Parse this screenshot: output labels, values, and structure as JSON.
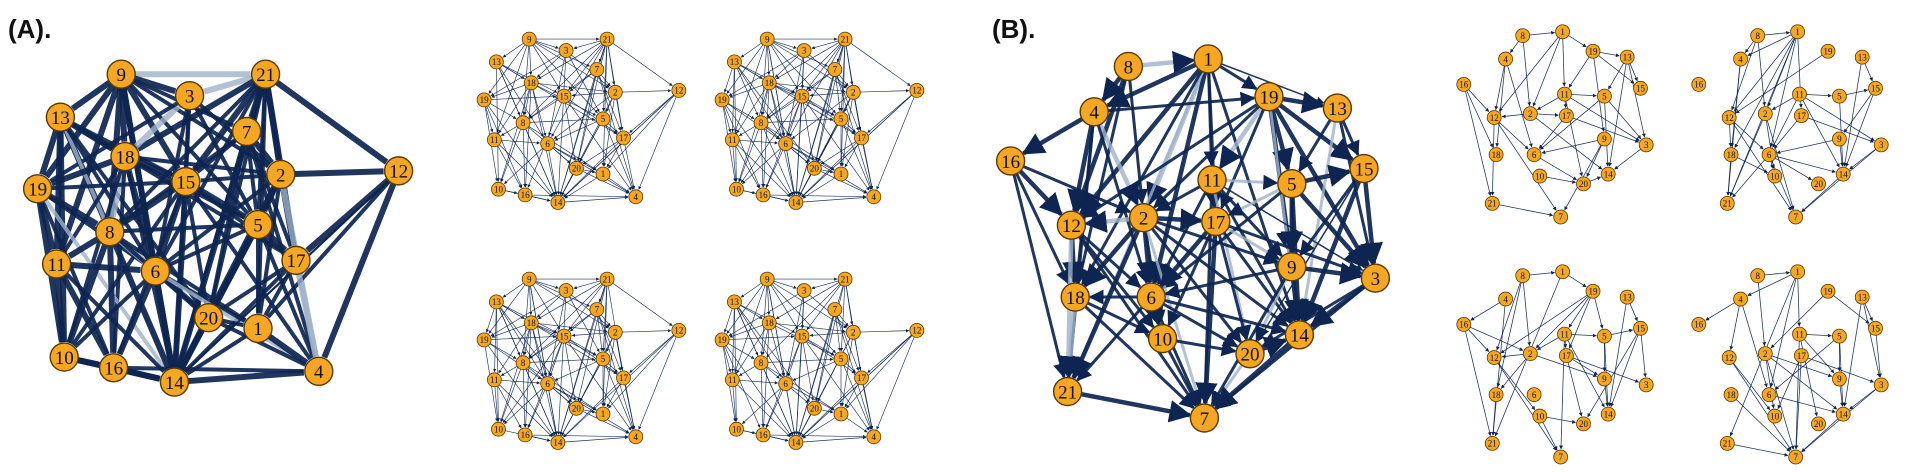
{
  "colors": {
    "node_fill": "#f5a623",
    "node_stroke": "#5a3a00",
    "edge_strong": "#0d2550",
    "edge_light": "#9fb2c9",
    "background": "#ffffff"
  },
  "panels": [
    {
      "label": "(A).",
      "large_graph": {
        "nodes": [
          "9",
          "21",
          "3",
          "13",
          "7",
          "18",
          "2",
          "12",
          "19",
          "15",
          "8",
          "5",
          "17",
          "11",
          "6",
          "20",
          "1",
          "10",
          "16",
          "14",
          "4"
        ],
        "edges": [
          [
            "9",
            "21",
            3
          ],
          [
            "9",
            "3",
            3
          ],
          [
            "9",
            "13",
            3
          ],
          [
            "9",
            "18",
            3
          ],
          [
            "9",
            "15",
            3
          ],
          [
            "9",
            "8",
            3
          ],
          [
            "9",
            "19",
            3
          ],
          [
            "9",
            "11",
            3
          ],
          [
            "9",
            "6",
            3
          ],
          [
            "9",
            "14",
            3
          ],
          [
            "9",
            "2",
            2
          ],
          [
            "9",
            "7",
            2
          ],
          [
            "9",
            "5",
            2
          ],
          [
            "21",
            "3",
            3
          ],
          [
            "21",
            "7",
            3
          ],
          [
            "21",
            "2",
            3
          ],
          [
            "21",
            "12",
            3
          ],
          [
            "21",
            "17",
            3
          ],
          [
            "21",
            "14",
            3
          ],
          [
            "21",
            "15",
            3
          ],
          [
            "21",
            "18",
            3
          ],
          [
            "21",
            "5",
            2
          ],
          [
            "21",
            "20",
            2
          ],
          [
            "21",
            "6",
            2
          ],
          [
            "21",
            "1",
            2
          ],
          [
            "21",
            "8",
            2
          ],
          [
            "3",
            "18",
            3
          ],
          [
            "3",
            "15",
            2
          ],
          [
            "3",
            "2",
            2
          ],
          [
            "3",
            "5",
            2
          ],
          [
            "3",
            "14",
            2
          ],
          [
            "3",
            "19",
            2
          ],
          [
            "3",
            "6",
            2
          ],
          [
            "13",
            "18",
            3
          ],
          [
            "13",
            "19",
            3
          ],
          [
            "13",
            "8",
            3
          ],
          [
            "13",
            "11",
            3
          ],
          [
            "13",
            "10",
            3
          ],
          [
            "13",
            "15",
            2
          ],
          [
            "13",
            "14",
            2
          ],
          [
            "13",
            "6",
            2
          ],
          [
            "13",
            "20",
            2
          ],
          [
            "13",
            "17",
            2
          ],
          [
            "7",
            "2",
            3
          ],
          [
            "7",
            "15",
            2
          ],
          [
            "7",
            "5",
            2
          ],
          [
            "7",
            "14",
            2
          ],
          [
            "7",
            "8",
            2
          ],
          [
            "7",
            "17",
            2
          ],
          [
            "7",
            "20",
            2
          ],
          [
            "7",
            "4",
            2
          ],
          [
            "18",
            "19",
            3
          ],
          [
            "18",
            "8",
            3
          ],
          [
            "18",
            "15",
            3
          ],
          [
            "18",
            "6",
            3
          ],
          [
            "18",
            "11",
            2
          ],
          [
            "18",
            "10",
            2
          ],
          [
            "18",
            "16",
            2
          ],
          [
            "18",
            "14",
            2
          ],
          [
            "18",
            "2",
            2
          ],
          [
            "18",
            "5",
            2
          ],
          [
            "2",
            "12",
            3
          ],
          [
            "2",
            "5",
            3
          ],
          [
            "2",
            "17",
            3
          ],
          [
            "2",
            "14",
            3
          ],
          [
            "2",
            "4",
            3
          ],
          [
            "2",
            "20",
            2
          ],
          [
            "2",
            "1",
            2
          ],
          [
            "2",
            "6",
            2
          ],
          [
            "2",
            "15",
            2
          ],
          [
            "12",
            "17",
            3
          ],
          [
            "12",
            "4",
            3
          ],
          [
            "12",
            "1",
            2
          ],
          [
            "12",
            "14",
            1
          ],
          [
            "19",
            "8",
            3
          ],
          [
            "19",
            "11",
            3
          ],
          [
            "19",
            "10",
            3
          ],
          [
            "19",
            "16",
            2
          ],
          [
            "19",
            "14",
            2
          ],
          [
            "19",
            "6",
            2
          ],
          [
            "19",
            "15",
            2
          ],
          [
            "15",
            "8",
            3
          ],
          [
            "15",
            "5",
            3
          ],
          [
            "15",
            "6",
            3
          ],
          [
            "15",
            "14",
            3
          ],
          [
            "15",
            "20",
            2
          ],
          [
            "15",
            "17",
            2
          ],
          [
            "15",
            "10",
            2
          ],
          [
            "15",
            "16",
            2
          ],
          [
            "15",
            "4",
            2
          ],
          [
            "8",
            "11",
            3
          ],
          [
            "8",
            "6",
            3
          ],
          [
            "8",
            "10",
            3
          ],
          [
            "8",
            "16",
            3
          ],
          [
            "8",
            "14",
            3
          ],
          [
            "8",
            "20",
            2
          ],
          [
            "8",
            "5",
            2
          ],
          [
            "8",
            "1",
            2
          ],
          [
            "5",
            "17",
            3
          ],
          [
            "5",
            "20",
            3
          ],
          [
            "5",
            "14",
            3
          ],
          [
            "5",
            "1",
            2
          ],
          [
            "5",
            "4",
            2
          ],
          [
            "5",
            "6",
            2
          ],
          [
            "17",
            "4",
            3
          ],
          [
            "17",
            "1",
            2
          ],
          [
            "17",
            "20",
            2
          ],
          [
            "17",
            "14",
            2
          ],
          [
            "11",
            "10",
            3
          ],
          [
            "11",
            "16",
            3
          ],
          [
            "11",
            "6",
            3
          ],
          [
            "11",
            "14",
            2
          ],
          [
            "6",
            "14",
            3
          ],
          [
            "6",
            "16",
            3
          ],
          [
            "6",
            "20",
            3
          ],
          [
            "6",
            "10",
            2
          ],
          [
            "6",
            "1",
            2
          ],
          [
            "6",
            "4",
            2
          ],
          [
            "20",
            "14",
            3
          ],
          [
            "20",
            "1",
            2
          ],
          [
            "20",
            "4",
            2
          ],
          [
            "1",
            "4",
            3
          ],
          [
            "1",
            "14",
            2
          ],
          [
            "10",
            "16",
            3
          ],
          [
            "10",
            "14",
            3
          ],
          [
            "16",
            "14",
            3
          ],
          [
            "16",
            "4",
            2
          ],
          [
            "14",
            "4",
            3
          ],
          [
            "12",
            "14",
            1
          ]
        ]
      },
      "small_graph_nodes": [
        "9",
        "21",
        "3",
        "13",
        "7",
        "18",
        "2",
        "12",
        "19",
        "15",
        "8",
        "5",
        "17",
        "11",
        "6",
        "20",
        "1",
        "10",
        "16",
        "14",
        "4"
      ]
    },
    {
      "label": "(B).",
      "large_graph": {
        "nodes": [
          "8",
          "1",
          "4",
          "19",
          "13",
          "16",
          "11",
          "5",
          "15",
          "2",
          "17",
          "12",
          "9",
          "3",
          "6",
          "18",
          "10",
          "20",
          "14",
          "21",
          "7"
        ],
        "edges": [
          [
            "8",
            "1",
            3
          ],
          [
            "8",
            "4",
            3
          ],
          [
            "8",
            "12",
            3
          ],
          [
            "8",
            "2",
            2
          ],
          [
            "8",
            "18",
            2
          ],
          [
            "1",
            "4",
            3
          ],
          [
            "1",
            "2",
            3
          ],
          [
            "1",
            "12",
            3
          ],
          [
            "1",
            "6",
            3
          ],
          [
            "1",
            "19",
            2
          ],
          [
            "1",
            "11",
            2
          ],
          [
            "1",
            "17",
            2
          ],
          [
            "1",
            "21",
            2
          ],
          [
            "1",
            "18",
            2
          ],
          [
            "1",
            "14",
            2
          ],
          [
            "1",
            "13",
            1
          ],
          [
            "4",
            "16",
            3
          ],
          [
            "4",
            "12",
            3
          ],
          [
            "4",
            "2",
            3
          ],
          [
            "4",
            "6",
            2
          ],
          [
            "4",
            "18",
            2
          ],
          [
            "4",
            "21",
            2
          ],
          [
            "4",
            "19",
            2
          ],
          [
            "19",
            "13",
            3
          ],
          [
            "19",
            "11",
            3
          ],
          [
            "19",
            "5",
            3
          ],
          [
            "19",
            "15",
            3
          ],
          [
            "19",
            "9",
            3
          ],
          [
            "19",
            "3",
            3
          ],
          [
            "19",
            "2",
            2
          ],
          [
            "19",
            "14",
            2
          ],
          [
            "19",
            "17",
            2
          ],
          [
            "19",
            "12",
            2
          ],
          [
            "13",
            "15",
            2
          ],
          [
            "13",
            "5",
            2
          ],
          [
            "13",
            "3",
            2
          ],
          [
            "13",
            "14",
            2
          ],
          [
            "16",
            "12",
            3
          ],
          [
            "16",
            "18",
            2
          ],
          [
            "16",
            "21",
            2
          ],
          [
            "16",
            "2",
            2
          ],
          [
            "11",
            "17",
            3
          ],
          [
            "11",
            "5",
            2
          ],
          [
            "11",
            "9",
            2
          ],
          [
            "11",
            "2",
            2
          ],
          [
            "11",
            "6",
            2
          ],
          [
            "11",
            "14",
            2
          ],
          [
            "11",
            "7",
            2
          ],
          [
            "11",
            "20",
            2
          ],
          [
            "11",
            "3",
            1
          ],
          [
            "5",
            "15",
            3
          ],
          [
            "5",
            "3",
            3
          ],
          [
            "5",
            "9",
            3
          ],
          [
            "5",
            "14",
            3
          ],
          [
            "5",
            "17",
            2
          ],
          [
            "5",
            "6",
            2
          ],
          [
            "15",
            "3",
            3
          ],
          [
            "15",
            "14",
            3
          ],
          [
            "15",
            "9",
            2
          ],
          [
            "15",
            "20",
            1
          ],
          [
            "2",
            "12",
            3
          ],
          [
            "2",
            "17",
            3
          ],
          [
            "2",
            "6",
            3
          ],
          [
            "2",
            "18",
            3
          ],
          [
            "2",
            "21",
            3
          ],
          [
            "2",
            "10",
            2
          ],
          [
            "2",
            "7",
            2
          ],
          [
            "2",
            "20",
            2
          ],
          [
            "2",
            "14",
            2
          ],
          [
            "2",
            "9",
            2
          ],
          [
            "17",
            "6",
            3
          ],
          [
            "17",
            "7",
            3
          ],
          [
            "17",
            "9",
            2
          ],
          [
            "17",
            "10",
            2
          ],
          [
            "17",
            "20",
            2
          ],
          [
            "17",
            "14",
            2
          ],
          [
            "17",
            "3",
            2
          ],
          [
            "12",
            "18",
            3
          ],
          [
            "12",
            "21",
            3
          ],
          [
            "12",
            "6",
            2
          ],
          [
            "12",
            "10",
            2
          ],
          [
            "12",
            "7",
            2
          ],
          [
            "9",
            "3",
            3
          ],
          [
            "9",
            "14",
            3
          ],
          [
            "9",
            "20",
            2
          ],
          [
            "9",
            "7",
            2
          ],
          [
            "9",
            "6",
            2
          ],
          [
            "3",
            "14",
            3
          ],
          [
            "3",
            "20",
            2
          ],
          [
            "3",
            "7",
            2
          ],
          [
            "6",
            "10",
            3
          ],
          [
            "6",
            "18",
            2
          ],
          [
            "6",
            "7",
            2
          ],
          [
            "6",
            "20",
            2
          ],
          [
            "6",
            "21",
            2
          ],
          [
            "6",
            "14",
            2
          ],
          [
            "18",
            "21",
            3
          ],
          [
            "18",
            "7",
            2
          ],
          [
            "18",
            "10",
            2
          ],
          [
            "10",
            "20",
            2
          ],
          [
            "10",
            "7",
            2
          ],
          [
            "20",
            "14",
            3
          ],
          [
            "20",
            "7",
            2
          ],
          [
            "14",
            "7",
            3
          ],
          [
            "21",
            "7",
            3
          ]
        ]
      },
      "small_graph_nodes": [
        "8",
        "1",
        "4",
        "19",
        "13",
        "16",
        "11",
        "5",
        "15",
        "2",
        "17",
        "12",
        "9",
        "3",
        "6",
        "18",
        "10",
        "20",
        "14",
        "21",
        "7"
      ]
    }
  ]
}
